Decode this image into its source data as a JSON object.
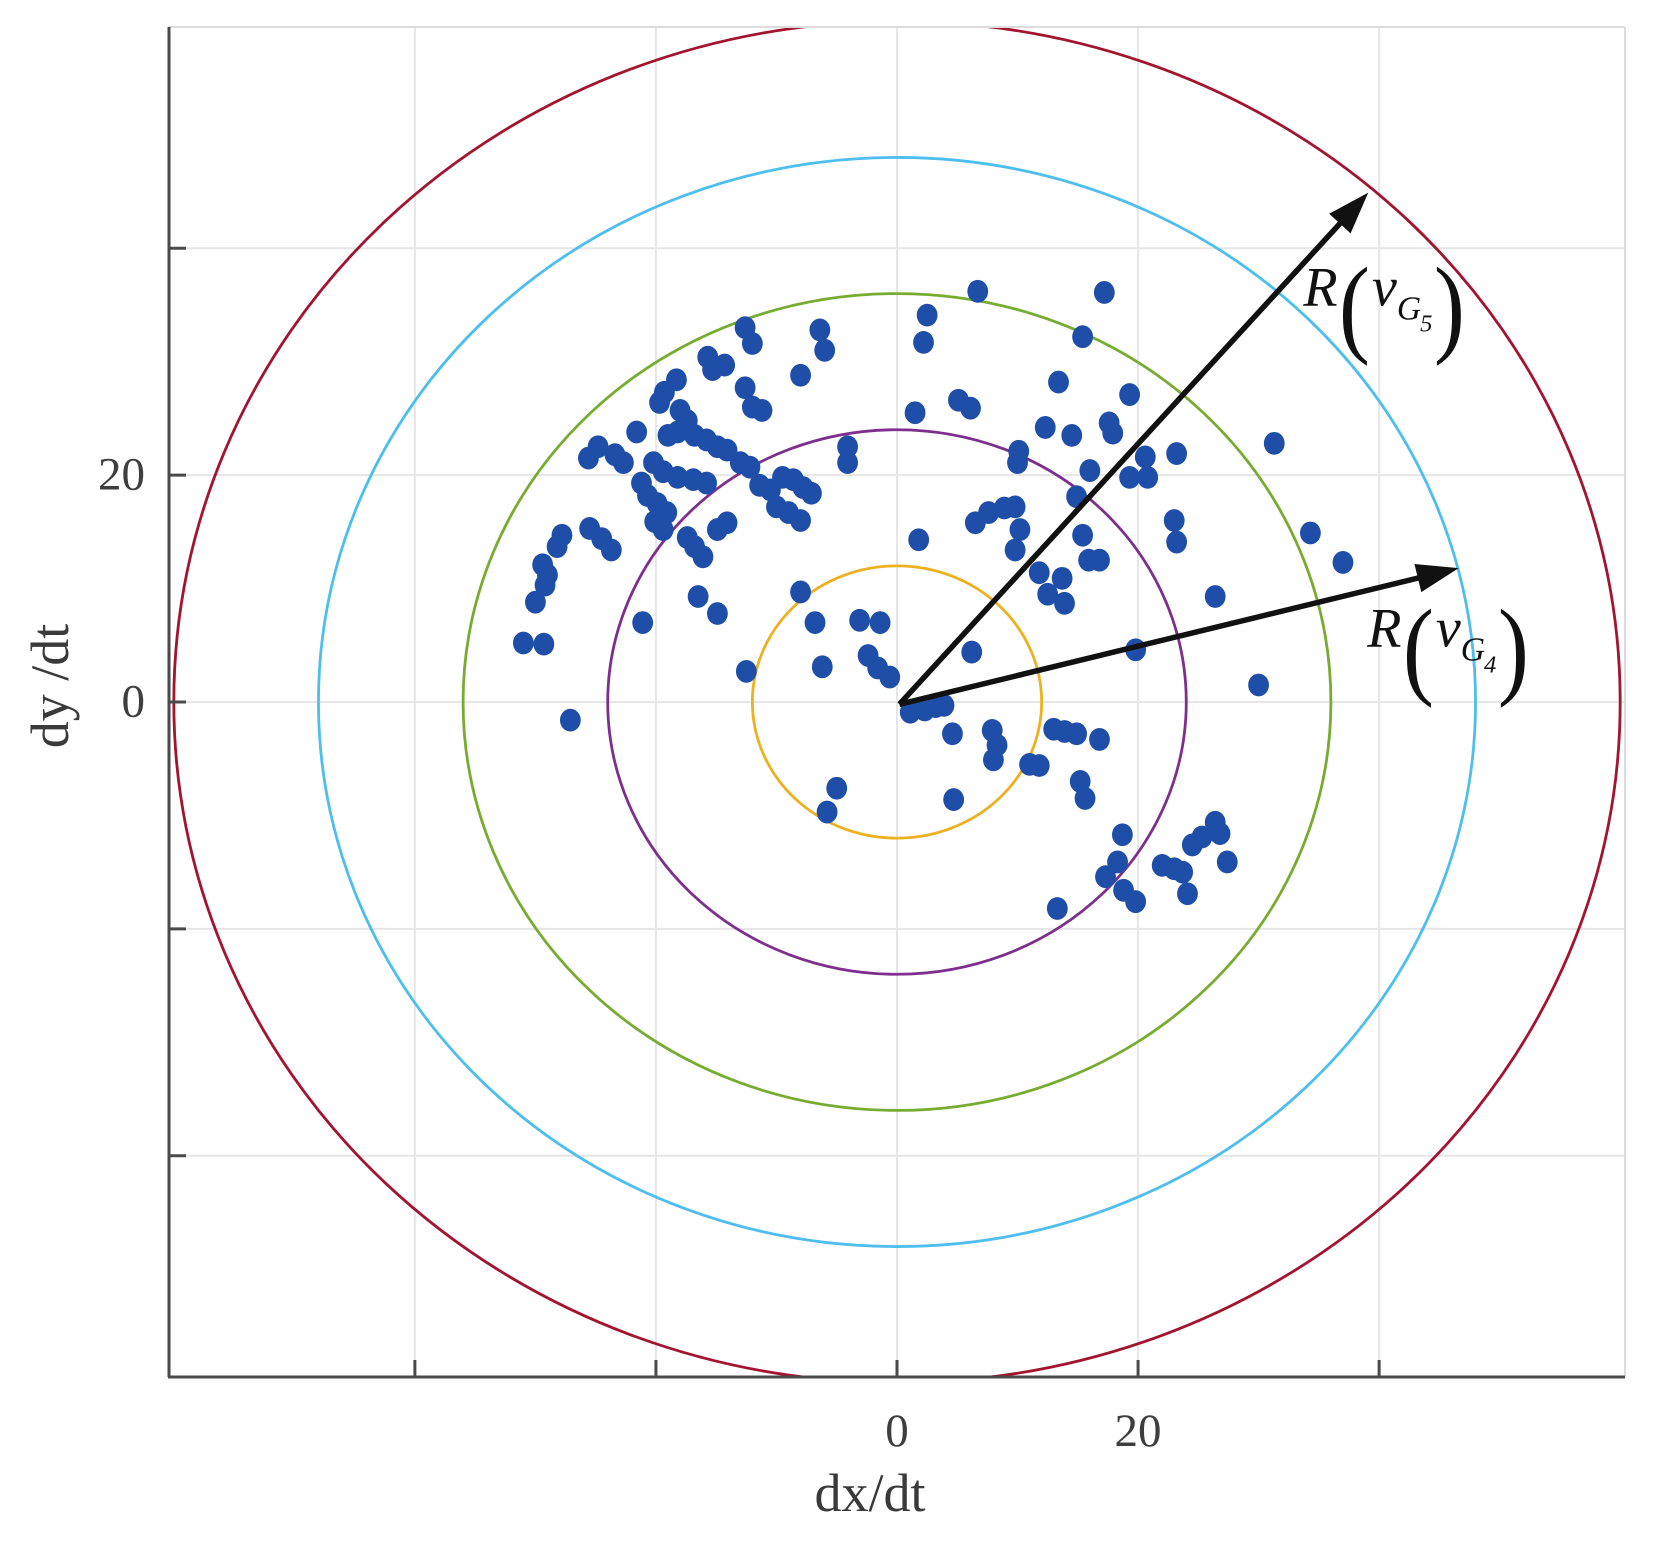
{
  "chart_data": {
    "type": "scatter",
    "title": "",
    "xlabel": "dx/dt",
    "ylabel": "dy /dt",
    "axes": {
      "xlim": [
        -60.4,
        60.4
      ],
      "ylim": [
        -59.5,
        59.5
      ],
      "grid": true,
      "x_ticks": [
        {
          "value": -40,
          "label": ""
        },
        {
          "value": -20,
          "label": ""
        },
        {
          "value": 0,
          "label": "0"
        },
        {
          "value": 20,
          "label": "20"
        },
        {
          "value": 40,
          "label": ""
        }
      ],
      "y_ticks": [
        {
          "value": -40,
          "label": ""
        },
        {
          "value": -20,
          "label": ""
        },
        {
          "value": 0,
          "label": "0"
        },
        {
          "value": 20,
          "label": "20"
        },
        {
          "value": 40,
          "label": ""
        }
      ]
    },
    "colors": {
      "background": "#ffffff",
      "axis": "#4a4a4a",
      "grid": "#e6e6e6",
      "box_light": "#dcdcdc",
      "arrow": "#111111",
      "dots": "#1f4ea8"
    },
    "circles": [
      {
        "name": "ring-1",
        "radius": 12,
        "color": "#EDB120"
      },
      {
        "name": "ring-2",
        "radius": 24,
        "color": "#7E2F8E"
      },
      {
        "name": "ring-3",
        "radius": 36,
        "color": "#77AC30"
      },
      {
        "name": "ring-4",
        "radius": 48,
        "color": "#4DBEEE"
      },
      {
        "name": "ring-5",
        "radius": 60,
        "color": "#A2142F"
      }
    ],
    "arrows": [
      {
        "name": "g5",
        "from": [
          0.2,
          -0.2
        ],
        "to": [
          39.1,
          44.9
        ],
        "label_pos": [
          40.5,
          35.7
        ],
        "label": {
          "f": "R",
          "open": "(",
          "v": "v",
          "sub": "G",
          "subsub": "5",
          "close": ")"
        }
      },
      {
        "name": "g4",
        "from": [
          0.2,
          -0.2
        ],
        "to": [
          46.6,
          11.8
        ],
        "label_pos": [
          45.8,
          5.6
        ],
        "label": {
          "f": "R",
          "open": "(",
          "v": "v",
          "sub": "G",
          "subsub": "4",
          "close": ")"
        }
      }
    ],
    "points": {
      "color": "#1f4ea8",
      "xy": [
        [
          -12.6,
          33.0
        ],
        [
          -12.0,
          31.6
        ],
        [
          -6.4,
          32.8
        ],
        [
          -6.0,
          31.0
        ],
        [
          -15.7,
          30.4
        ],
        [
          -15.3,
          29.3
        ],
        [
          -14.3,
          29.7
        ],
        [
          -8.0,
          28.8
        ],
        [
          -12.6,
          27.7
        ],
        [
          -12.0,
          26.0
        ],
        [
          -18.3,
          28.4
        ],
        [
          -19.3,
          27.3
        ],
        [
          -19.7,
          26.4
        ],
        [
          -11.2,
          25.7
        ],
        [
          -18.0,
          25.7
        ],
        [
          -17.4,
          24.8
        ],
        [
          -18.2,
          23.8
        ],
        [
          -21.6,
          23.8
        ],
        [
          -19.0,
          23.5
        ],
        [
          -16.8,
          23.5
        ],
        [
          -15.8,
          23.1
        ],
        [
          -14.9,
          22.5
        ],
        [
          -14.1,
          22.2
        ],
        [
          -4.1,
          22.5
        ],
        [
          -4.1,
          21.1
        ],
        [
          -24.8,
          22.5
        ],
        [
          -25.6,
          21.5
        ],
        [
          -23.4,
          21.8
        ],
        [
          -22.7,
          21.1
        ],
        [
          -20.2,
          21.1
        ],
        [
          -19.4,
          20.3
        ],
        [
          -18.2,
          19.8
        ],
        [
          -16.9,
          19.6
        ],
        [
          -15.8,
          19.3
        ],
        [
          -13.0,
          21.1
        ],
        [
          -12.2,
          20.7
        ],
        [
          -11.4,
          19.1
        ],
        [
          -10.5,
          18.7
        ],
        [
          -9.5,
          19.8
        ],
        [
          -8.6,
          19.6
        ],
        [
          -7.8,
          18.9
        ],
        [
          -21.2,
          19.3
        ],
        [
          -20.7,
          18.2
        ],
        [
          -19.9,
          17.5
        ],
        [
          -19.1,
          16.7
        ],
        [
          -20.1,
          15.9
        ],
        [
          -19.4,
          15.2
        ],
        [
          -27.8,
          14.7
        ],
        [
          -28.2,
          13.7
        ],
        [
          -25.5,
          15.3
        ],
        [
          -24.5,
          14.4
        ],
        [
          -23.7,
          13.4
        ],
        [
          -29.4,
          12.1
        ],
        [
          -29.0,
          11.2
        ],
        [
          -17.4,
          14.5
        ],
        [
          -16.8,
          13.7
        ],
        [
          -16.1,
          12.8
        ],
        [
          -14.9,
          15.2
        ],
        [
          -14.1,
          15.8
        ],
        [
          -10.0,
          17.2
        ],
        [
          -9.0,
          16.7
        ],
        [
          -8.0,
          16.0
        ],
        [
          -7.1,
          18.4
        ],
        [
          6.7,
          36.2
        ],
        [
          2.5,
          34.1
        ],
        [
          2.2,
          31.7
        ],
        [
          17.2,
          36.1
        ],
        [
          15.4,
          32.2
        ],
        [
          13.4,
          28.2
        ],
        [
          5.1,
          26.6
        ],
        [
          6.1,
          25.9
        ],
        [
          1.5,
          25.5
        ],
        [
          19.3,
          27.1
        ],
        [
          17.6,
          24.6
        ],
        [
          17.9,
          23.7
        ],
        [
          12.3,
          24.2
        ],
        [
          14.5,
          23.5
        ],
        [
          10.1,
          22.1
        ],
        [
          10.0,
          21.1
        ],
        [
          16.0,
          20.4
        ],
        [
          14.9,
          18.1
        ],
        [
          20.6,
          21.6
        ],
        [
          19.3,
          19.8
        ],
        [
          20.8,
          19.8
        ],
        [
          23.2,
          21.9
        ],
        [
          31.3,
          22.8
        ],
        [
          15.4,
          14.7
        ],
        [
          15.9,
          12.5
        ],
        [
          16.8,
          12.5
        ],
        [
          23.0,
          16.0
        ],
        [
          23.2,
          14.1
        ],
        [
          1.8,
          14.3
        ],
        [
          6.5,
          15.8
        ],
        [
          7.6,
          16.7
        ],
        [
          8.9,
          17.1
        ],
        [
          9.8,
          17.2
        ],
        [
          10.2,
          15.2
        ],
        [
          9.8,
          13.4
        ],
        [
          11.8,
          11.4
        ],
        [
          13.7,
          10.9
        ],
        [
          -30.0,
          8.8
        ],
        [
          -29.2,
          10.3
        ],
        [
          -31.0,
          5.2
        ],
        [
          -29.3,
          5.1
        ],
        [
          -21.1,
          7.0
        ],
        [
          -16.5,
          9.3
        ],
        [
          -14.9,
          7.8
        ],
        [
          -12.5,
          2.7
        ],
        [
          -8.0,
          9.7
        ],
        [
          -6.8,
          7.0
        ],
        [
          -6.2,
          3.1
        ],
        [
          -27.1,
          -1.6
        ],
        [
          -5.0,
          -7.6
        ],
        [
          -5.8,
          -9.7
        ],
        [
          -3.1,
          7.2
        ],
        [
          -1.4,
          7.0
        ],
        [
          -2.4,
          4.1
        ],
        [
          -1.6,
          3.0
        ],
        [
          -0.6,
          2.2
        ],
        [
          12.5,
          9.5
        ],
        [
          13.9,
          8.7
        ],
        [
          6.2,
          4.4
        ],
        [
          19.8,
          4.6
        ],
        [
          26.4,
          9.3
        ],
        [
          30.0,
          1.5
        ],
        [
          1.1,
          -0.9
        ],
        [
          2.3,
          -0.7
        ],
        [
          3.2,
          -0.4
        ],
        [
          3.9,
          -0.3
        ],
        [
          4.6,
          -2.8
        ],
        [
          7.9,
          -2.5
        ],
        [
          8.3,
          -3.8
        ],
        [
          13.0,
          -2.4
        ],
        [
          13.9,
          -2.6
        ],
        [
          14.9,
          -2.8
        ],
        [
          16.8,
          -3.3
        ],
        [
          8.0,
          -5.1
        ],
        [
          11.0,
          -5.5
        ],
        [
          11.8,
          -5.6
        ],
        [
          15.2,
          -7.0
        ],
        [
          15.6,
          -8.5
        ],
        [
          4.7,
          -8.6
        ],
        [
          18.7,
          -11.7
        ],
        [
          18.3,
          -14.1
        ],
        [
          17.3,
          -15.4
        ],
        [
          18.8,
          -16.6
        ],
        [
          19.8,
          -17.6
        ],
        [
          22.0,
          -14.4
        ],
        [
          23.0,
          -14.7
        ],
        [
          23.7,
          -15.0
        ],
        [
          24.5,
          -12.6
        ],
        [
          25.3,
          -11.9
        ],
        [
          26.4,
          -10.6
        ],
        [
          26.8,
          -11.6
        ],
        [
          27.4,
          -14.1
        ],
        [
          24.1,
          -16.9
        ],
        [
          13.3,
          -18.2
        ],
        [
          34.3,
          14.9
        ],
        [
          37.0,
          12.3
        ]
      ]
    }
  }
}
